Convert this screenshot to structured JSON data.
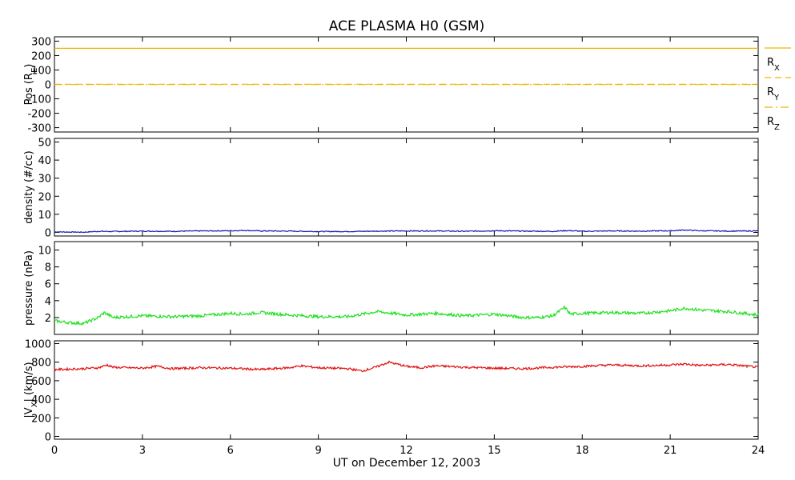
{
  "title": "ACE PLASMA H0 (GSM)",
  "xlabel": "UT on December 12, 2003",
  "x_ticks": [
    0,
    3,
    6,
    9,
    12,
    15,
    18,
    21,
    24
  ],
  "xlim": [
    0,
    24
  ],
  "legend": [
    {
      "label_main": "R",
      "label_sub": "X",
      "color": "#f0b400",
      "style": "solid"
    },
    {
      "label_main": "R",
      "label_sub": "Y",
      "color": "#f0b400",
      "style": "dashed"
    },
    {
      "label_main": "R",
      "label_sub": "Z",
      "color": "#f0b400",
      "style": "dashdot"
    }
  ],
  "chart_data": [
    {
      "type": "line",
      "ylabel_main": "Pos (R",
      "ylabel_sub": "E",
      "ylabel_end": ")",
      "ylim": [
        -330,
        330
      ],
      "yticks": [
        300,
        200,
        100,
        0,
        -100,
        -200,
        -300
      ],
      "series": [
        {
          "name": "RX",
          "color": "#f0b400",
          "style": "solid",
          "x": [
            0,
            24
          ],
          "y": [
            250,
            250
          ]
        },
        {
          "name": "RY",
          "color": "#f0b400",
          "style": "dashed",
          "x": [
            0,
            24
          ],
          "y": [
            1,
            1
          ]
        },
        {
          "name": "RZ",
          "color": "#f0b400",
          "style": "dashdot",
          "x": [
            0,
            24
          ],
          "y": [
            -1,
            -1
          ]
        }
      ]
    },
    {
      "type": "line",
      "ylabel_main": "density (#/cc)",
      "ylim": [
        -2,
        52
      ],
      "yticks": [
        50,
        40,
        30,
        20,
        10,
        0
      ],
      "series": [
        {
          "color": "#1a1ab4",
          "x": [
            0,
            0.5,
            1,
            1.5,
            2,
            3,
            4,
            5,
            6,
            6.5,
            7,
            8,
            9,
            10,
            11,
            12,
            13,
            14,
            15,
            16,
            17,
            17.5,
            18,
            19,
            20,
            21,
            21.5,
            22,
            23,
            24
          ],
          "y": [
            0.3,
            0.2,
            0.1,
            0.6,
            0.5,
            0.7,
            0.6,
            0.8,
            0.9,
            1.1,
            0.8,
            0.7,
            0.5,
            0.5,
            0.7,
            0.8,
            0.8,
            0.6,
            0.9,
            0.7,
            0.6,
            1.0,
            0.6,
            0.8,
            0.7,
            0.9,
            1.3,
            0.9,
            0.7,
            0.8
          ]
        }
      ]
    },
    {
      "type": "line",
      "ylabel_main": "pressure (nPa)",
      "ylim": [
        0,
        11
      ],
      "yticks": [
        10,
        8,
        6,
        4,
        2
      ],
      "series": [
        {
          "color": "#1ee01e",
          "x": [
            0,
            0.5,
            1,
            1.5,
            1.7,
            2,
            3,
            4,
            5,
            6,
            6.5,
            7,
            8,
            9,
            10,
            10.5,
            11,
            11.5,
            12,
            13,
            14,
            15,
            16,
            16.5,
            17,
            17.4,
            17.6,
            18,
            19,
            20,
            21,
            21.5,
            22,
            23,
            24
          ],
          "y": [
            1.6,
            1.4,
            1.3,
            2.0,
            2.6,
            2.0,
            2.2,
            2.1,
            2.2,
            2.5,
            2.4,
            2.6,
            2.3,
            2.1,
            2.1,
            2.4,
            2.7,
            2.5,
            2.3,
            2.5,
            2.2,
            2.4,
            2.0,
            2.0,
            2.2,
            3.2,
            2.4,
            2.5,
            2.6,
            2.5,
            2.8,
            3.1,
            2.9,
            2.7,
            2.3
          ]
        }
      ]
    },
    {
      "type": "line",
      "ylabel_main": "|V",
      "ylabel_sub": "X",
      "ylabel_end": "| (km/s)",
      "ylim": [
        -30,
        1030
      ],
      "yticks": [
        1000,
        800,
        600,
        400,
        200,
        0
      ],
      "series": [
        {
          "color": "#e01010",
          "x": [
            0,
            0.5,
            1,
            1.5,
            1.8,
            2,
            3,
            3.5,
            4,
            5,
            6,
            7,
            8,
            8.4,
            9,
            10,
            10.5,
            11,
            11.4,
            12,
            12.5,
            13,
            14,
            15,
            16,
            17,
            18,
            19,
            20,
            21,
            21.5,
            22,
            23,
            23.5,
            24
          ],
          "y": [
            720,
            725,
            730,
            740,
            770,
            745,
            735,
            755,
            730,
            740,
            735,
            720,
            740,
            760,
            740,
            730,
            705,
            750,
            800,
            755,
            740,
            760,
            745,
            735,
            730,
            745,
            755,
            770,
            760,
            770,
            780,
            765,
            775,
            760,
            745
          ]
        }
      ]
    }
  ]
}
